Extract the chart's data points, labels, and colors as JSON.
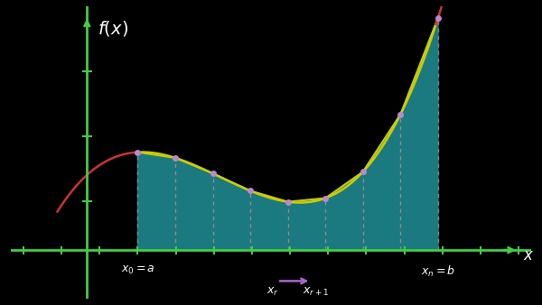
{
  "bg_color": "#000000",
  "axis_color": "#44cc44",
  "trap_fill_color": "#1a7a80",
  "curve_color_red": "#cc3333",
  "curve_color_yellow": "#cccc00",
  "dashed_color": "#aa8888",
  "point_color": "#bb88cc",
  "arrow_color": "#aa66cc",
  "text_color": "#ffffff",
  "n_trap": 8,
  "a": 2.2,
  "b": 9.3,
  "ylim_min": -1.5,
  "ylim_max": 7.5,
  "xlim_min": -0.8,
  "xlim_max": 11.5,
  "yaxis_x": 1.0,
  "xaxis_y": 0.0,
  "fig_width": 6.0,
  "fig_height": 3.38,
  "dpi": 100
}
